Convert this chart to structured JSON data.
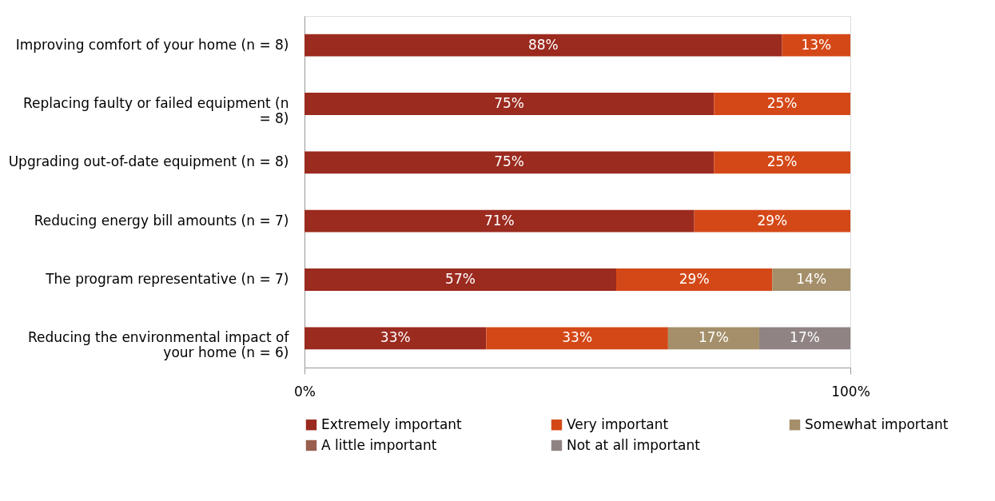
{
  "chart_data": {
    "type": "bar",
    "orientation": "horizontal",
    "stacked": true,
    "categories": [
      "Improving comfort of your home (n = 8)",
      "Replacing faulty or failed equipment (n = 8)",
      "Upgrading out-of-date equipment (n = 8)",
      "Reducing energy bill amounts (n = 7)",
      "The program representative (n = 7)",
      "Reducing the environmental impact of your home (n = 6)"
    ],
    "series": [
      {
        "name": "Extremely important",
        "color": "#9b2a1f",
        "values": [
          87.5,
          75,
          75,
          71.4,
          57.1,
          33.3
        ],
        "value_labels": [
          "88%",
          "75%",
          "75%",
          "71%",
          "57%",
          "33%"
        ]
      },
      {
        "name": "Very important",
        "color": "#d44817",
        "values": [
          12.5,
          25,
          25,
          28.6,
          28.6,
          33.3
        ],
        "value_labels": [
          "13%",
          "25%",
          "25%",
          "29%",
          "29%",
          "33%"
        ]
      },
      {
        "name": "Somewhat important",
        "color": "#a48f6a",
        "values": [
          null,
          null,
          null,
          null,
          14.3,
          16.7
        ],
        "value_labels": [
          null,
          null,
          null,
          null,
          "14%",
          "17%"
        ]
      },
      {
        "name": "A little important",
        "color": "#9a5f4f",
        "values": [
          null,
          null,
          null,
          null,
          null,
          null
        ],
        "value_labels": [
          null,
          null,
          null,
          null,
          null,
          null
        ]
      },
      {
        "name": "Not at all important",
        "color": "#8f8383",
        "values": [
          null,
          null,
          null,
          null,
          null,
          16.7
        ],
        "value_labels": [
          null,
          null,
          null,
          null,
          null,
          "17%"
        ]
      }
    ],
    "xlim": [
      0,
      100
    ],
    "xticks": [
      {
        "value": 0,
        "label": "0%"
      },
      {
        "value": 100,
        "label": "100%"
      }
    ],
    "grid": false,
    "legend": "bottom"
  }
}
